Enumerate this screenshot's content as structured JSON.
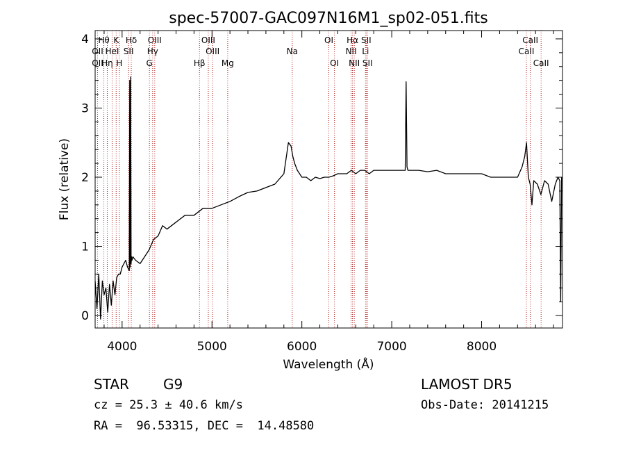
{
  "chart_data": {
    "type": "line",
    "title": "spec-57007-GAC097N16M1_sp02-051.fits",
    "xlabel": "Wavelength (Å)",
    "ylabel": "Flux (relative)",
    "xlim": [
      3700,
      8900
    ],
    "ylim": [
      -0.18,
      4.12
    ],
    "x_ticks": [
      4000,
      5000,
      6000,
      7000,
      8000
    ],
    "y_ticks": [
      0,
      1,
      2,
      3,
      4
    ],
    "grid": false,
    "series": [
      {
        "x": [
          3700,
          3720,
          3740,
          3760,
          3780,
          3800,
          3820,
          3840,
          3860,
          3880,
          3900,
          3920,
          3940,
          3960,
          3980,
          4000,
          4020,
          4040,
          4060,
          4080,
          4085,
          4090,
          4095,
          4100,
          4105,
          4110,
          4120,
          4150,
          4200,
          4250,
          4300,
          4350,
          4400,
          4450,
          4500,
          4600,
          4700,
          4800,
          4900,
          5000,
          5100,
          5200,
          5300,
          5400,
          5500,
          5600,
          5700,
          5800,
          5850,
          5880,
          5900,
          5920,
          5950,
          6000,
          6050,
          6100,
          6150,
          6200,
          6250,
          6300,
          6350,
          6400,
          6450,
          6500,
          6550,
          6600,
          6650,
          6700,
          6750,
          6800,
          6900,
          7000,
          7100,
          7150,
          7160,
          7170,
          7180,
          7200,
          7300,
          7400,
          7500,
          7600,
          7700,
          7800,
          7900,
          8000,
          8100,
          8200,
          8300,
          8400,
          8450,
          8480,
          8500,
          8520,
          8540,
          8560,
          8580,
          8620,
          8660,
          8700,
          8740,
          8780,
          8820,
          8850,
          8870,
          8880,
          8890
        ],
        "y": [
          0.5,
          0.1,
          0.6,
          -0.05,
          0.5,
          0.3,
          0.4,
          0.05,
          0.45,
          0.15,
          0.5,
          0.3,
          0.55,
          0.6,
          0.6,
          0.7,
          0.75,
          0.8,
          0.7,
          0.65,
          3.4,
          0.7,
          3.45,
          0.75,
          0.85,
          0.8,
          0.85,
          0.8,
          0.75,
          0.85,
          0.95,
          1.1,
          1.15,
          1.3,
          1.25,
          1.35,
          1.45,
          1.45,
          1.55,
          1.55,
          1.6,
          1.65,
          1.72,
          1.78,
          1.8,
          1.85,
          1.9,
          2.05,
          2.5,
          2.45,
          2.3,
          2.2,
          2.1,
          2.0,
          2.0,
          1.95,
          2.0,
          1.98,
          2.0,
          2.0,
          2.02,
          2.05,
          2.05,
          2.05,
          2.1,
          2.05,
          2.1,
          2.1,
          2.05,
          2.1,
          2.1,
          2.1,
          2.1,
          2.1,
          3.38,
          2.15,
          2.1,
          2.1,
          2.1,
          2.08,
          2.1,
          2.05,
          2.05,
          2.05,
          2.05,
          2.05,
          2.0,
          2.0,
          2.0,
          2.0,
          2.15,
          2.3,
          2.5,
          2.0,
          1.9,
          1.6,
          1.95,
          1.9,
          1.75,
          1.95,
          1.9,
          1.65,
          1.9,
          2.0,
          1.95,
          0.2,
          2.0
        ]
      }
    ],
    "spectral_lines": [
      {
        "label": "Hθ",
        "wavelength": 3797,
        "row": 0
      },
      {
        "label": "OII",
        "wavelength": 3727,
        "row": 1
      },
      {
        "label": "OII",
        "wavelength": 3727,
        "row": 2
      },
      {
        "label": "Hη",
        "wavelength": 3835,
        "row": 2
      },
      {
        "label": "K",
        "wavelength": 3934,
        "row": 0
      },
      {
        "label": "HeI",
        "wavelength": 3889,
        "row": 1
      },
      {
        "label": "H",
        "wavelength": 3969,
        "row": 2
      },
      {
        "label": "Hδ",
        "wavelength": 4102,
        "row": 0
      },
      {
        "label": "SII",
        "wavelength": 4072,
        "row": 1
      },
      {
        "label": "OIII",
        "wavelength": 4363,
        "row": 0
      },
      {
        "label": "Hγ",
        "wavelength": 4340,
        "row": 1
      },
      {
        "label": "G",
        "wavelength": 4304,
        "row": 2
      },
      {
        "label": "OIII",
        "wavelength": 4959,
        "row": 0
      },
      {
        "label": "OIII",
        "wavelength": 5007,
        "row": 1
      },
      {
        "label": "Hβ",
        "wavelength": 4861,
        "row": 2
      },
      {
        "label": "Mg",
        "wavelength": 5175,
        "row": 2
      },
      {
        "label": "Na",
        "wavelength": 5893,
        "row": 1
      },
      {
        "label": "OI",
        "wavelength": 6300,
        "row": 0
      },
      {
        "label": "OI",
        "wavelength": 6363,
        "row": 2
      },
      {
        "label": "Hα",
        "wavelength": 6563,
        "row": 0
      },
      {
        "label": "NII",
        "wavelength": 6548,
        "row": 1
      },
      {
        "label": "NII",
        "wavelength": 6583,
        "row": 2
      },
      {
        "label": "SII",
        "wavelength": 6716,
        "row": 0
      },
      {
        "label": "Li",
        "wavelength": 6708,
        "row": 1
      },
      {
        "label": "SII",
        "wavelength": 6731,
        "row": 2
      },
      {
        "label": "CaII",
        "wavelength": 8542,
        "row": 0
      },
      {
        "label": "CaII",
        "wavelength": 8498,
        "row": 1
      },
      {
        "label": "CaII",
        "wavelength": 8662,
        "row": 2
      }
    ],
    "line_color": "#000000",
    "marker_color": "#b22222"
  },
  "info": {
    "class_label": "STAR",
    "subclass": "G9",
    "survey": "LAMOST DR5",
    "cz": "cz = 25.3 ± 40.6 km/s",
    "obs_date": "Obs-Date: 20141215",
    "coords": "RA =  96.53315, DEC =  14.48580"
  }
}
